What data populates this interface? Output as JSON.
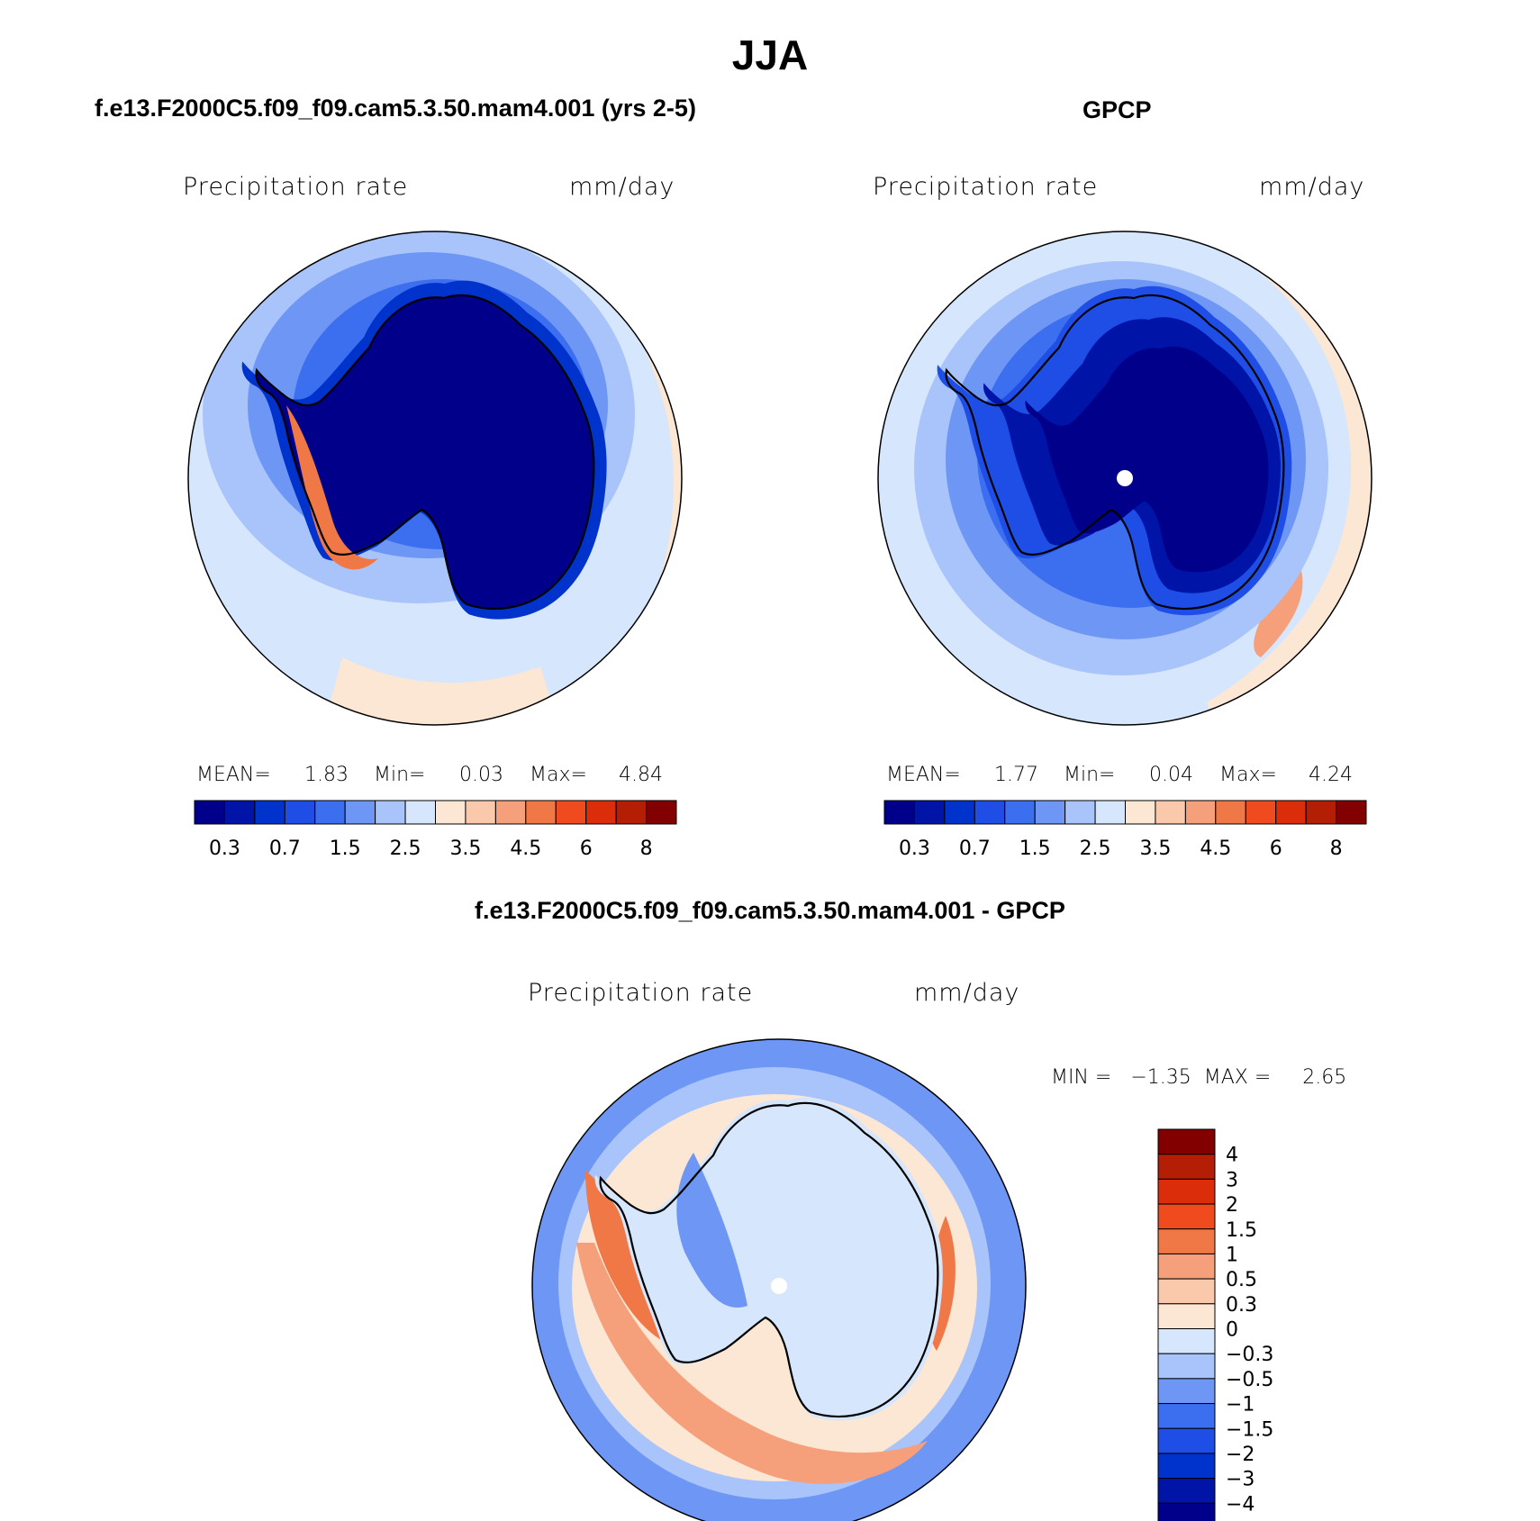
{
  "title": "JJA",
  "panels": [
    {
      "id": "model",
      "title": "f.e13.F2000C5.f09_f09.cam5.3.50.mam4.001 (yrs 2-5)",
      "variable": "Precipitation rate",
      "units": "mm/day",
      "stats": {
        "mean_label": "MEAN=",
        "mean": "1.83",
        "min_label": "Min=",
        "min": "0.03",
        "max_label": "Max=",
        "max": "4.84"
      },
      "colorbar": {
        "colors": [
          "#00008b",
          "#0014a8",
          "#0032cc",
          "#1e4ee6",
          "#3c6ef0",
          "#6e96f5",
          "#a8c4fa",
          "#d6e6fc",
          "#fce6d4",
          "#fac8aa",
          "#f5a07a",
          "#f07846",
          "#f04b1e",
          "#dc2d0a",
          "#b41e05",
          "#820000"
        ],
        "labels": [
          "0.3",
          "0.7",
          "1.5",
          "2.5",
          "3.5",
          "4.5",
          "6",
          "8"
        ]
      }
    },
    {
      "id": "obs",
      "title": "GPCP",
      "variable": "Precipitation rate",
      "units": "mm/day",
      "stats": {
        "mean_label": "MEAN=",
        "mean": "1.77",
        "min_label": "Min=",
        "min": "0.04",
        "max_label": "Max=",
        "max": "4.24"
      },
      "colorbar": {
        "colors": [
          "#00008b",
          "#0014a8",
          "#0032cc",
          "#1e4ee6",
          "#3c6ef0",
          "#6e96f5",
          "#a8c4fa",
          "#d6e6fc",
          "#fce6d4",
          "#fac8aa",
          "#f5a07a",
          "#f07846",
          "#f04b1e",
          "#dc2d0a",
          "#b41e05",
          "#820000"
        ],
        "labels": [
          "0.3",
          "0.7",
          "1.5",
          "2.5",
          "3.5",
          "4.5",
          "6",
          "8"
        ]
      }
    },
    {
      "id": "diff",
      "title": "f.e13.F2000C5.f09_f09.cam5.3.50.mam4.001 - GPCP",
      "variable": "Precipitation rate",
      "units": "mm/day",
      "stats_text": "MIN =   −1.35  MAX =     2.65",
      "colorbar": {
        "colors": [
          "#820000",
          "#b41e05",
          "#dc2d0a",
          "#f04b1e",
          "#f07846",
          "#f5a07a",
          "#fac8aa",
          "#fce6d4",
          "#d6e6fc",
          "#a8c4fa",
          "#6e96f5",
          "#3c6ef0",
          "#1e4ee6",
          "#0032cc",
          "#0014a8",
          "#00008b"
        ],
        "labels": [
          "4",
          "3",
          "2",
          "1.5",
          "1",
          "0.5",
          "0.3",
          "0",
          "−0.3",
          "−0.5",
          "−1",
          "−1.5",
          "−2",
          "−3",
          "−4"
        ]
      }
    }
  ]
}
